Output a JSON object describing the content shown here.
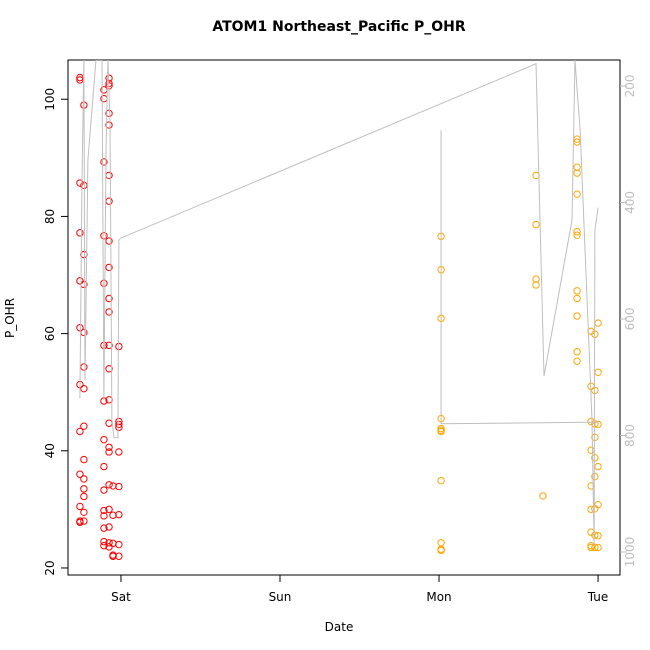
{
  "chart_data": {
    "type": "scatter",
    "title": "ATOM1 Northeast_Pacific P_OHR",
    "x_label": "Date",
    "y_label": "P_OHR",
    "xlim": [
      -0.333,
      3.138
    ],
    "xticks": [
      {
        "value": 0,
        "label": "Sat"
      },
      {
        "value": 1,
        "label": "Sun"
      },
      {
        "value": 2,
        "label": "Mon"
      },
      {
        "value": 3,
        "label": "Tue"
      }
    ],
    "ylim": [
      18.8,
      106.7
    ],
    "yticks": [
      20,
      40,
      60,
      80,
      100
    ],
    "y2lim": [
      1039.5,
      155.4
    ],
    "y2ticks": [
      200,
      400,
      600,
      800,
      1000
    ],
    "series": [
      {
        "color": "#ff0000",
        "x": [
          -0.258,
          -0.258,
          -0.258,
          -0.258,
          -0.258,
          -0.258,
          -0.258,
          -0.258,
          -0.258,
          -0.258,
          -0.258,
          -0.258,
          -0.233,
          -0.233,
          -0.233,
          -0.233,
          -0.233,
          -0.233,
          -0.233,
          -0.233,
          -0.233,
          -0.233,
          -0.233,
          -0.233,
          -0.233,
          -0.233,
          -0.107,
          -0.107,
          -0.107,
          -0.107,
          -0.107,
          -0.107,
          -0.107,
          -0.107,
          -0.107,
          -0.107,
          -0.107,
          -0.107,
          -0.107,
          -0.107,
          -0.107,
          -0.075,
          -0.075,
          -0.075,
          -0.075,
          -0.075,
          -0.075,
          -0.075,
          -0.075,
          -0.075,
          -0.075,
          -0.075,
          -0.075,
          -0.075,
          -0.075,
          -0.075,
          -0.075,
          -0.075,
          -0.075,
          -0.075,
          -0.075,
          -0.075,
          -0.075,
          -0.05,
          -0.05,
          -0.05,
          -0.05,
          -0.05,
          -0.013,
          -0.013,
          -0.013,
          -0.013,
          -0.013,
          -0.013,
          -0.013,
          -0.013,
          -0.013
        ],
        "values": [
          103.7,
          103.3,
          85.7,
          77.2,
          69,
          61,
          51.3,
          43.3,
          36,
          30.5,
          28,
          27.8,
          99,
          85.3,
          73.5,
          68.4,
          60.2,
          54.3,
          50.6,
          44.2,
          38.5,
          35.2,
          33.5,
          32.2,
          29.5,
          28,
          101.6,
          100.1,
          89.3,
          76.7,
          68.6,
          58,
          48.5,
          41.9,
          37.3,
          33.3,
          29.8,
          28.9,
          26.8,
          24.5,
          23.8,
          103.6,
          102.7,
          102.3,
          97.6,
          95.6,
          87,
          82.6,
          75.8,
          71.3,
          66,
          63.7,
          58,
          54,
          48.7,
          44.7,
          40.6,
          39.8,
          34.2,
          30,
          27,
          24.3,
          23.6,
          34,
          29,
          24.2,
          22.2,
          22,
          57.8,
          45,
          44.5,
          44,
          39.8,
          33.9,
          29.1,
          24,
          22
        ]
      },
      {
        "color": "#ffa500",
        "x": [
          2.013,
          2.013,
          2.013,
          2.013,
          2.013,
          2.013,
          2.013,
          2.013,
          2.013,
          2.013,
          2.013,
          2.61,
          2.61,
          2.61,
          2.61,
          2.654,
          2.868,
          2.868,
          2.868,
          2.868,
          2.868,
          2.868,
          2.868,
          2.868,
          2.868,
          2.868,
          2.868,
          2.868,
          2.956,
          2.956,
          2.956,
          2.956,
          2.956,
          2.956,
          2.956,
          2.956,
          2.956,
          2.98,
          2.98,
          2.98,
          2.98,
          2.98,
          2.98,
          2.98,
          2.98,
          2.98,
          3.0,
          3.0,
          3.0,
          3.0,
          3.0,
          3.0,
          3.0
        ],
        "values": [
          76.6,
          70.9,
          62.6,
          45.5,
          43.8,
          43.5,
          43.3,
          34.9,
          24.3,
          23.2,
          23,
          87,
          78.6,
          69.3,
          68.3,
          32.3,
          93.2,
          92.7,
          88.4,
          87.4,
          83.8,
          77.4,
          76.8,
          67.3,
          66,
          63,
          56.9,
          55.3,
          60.4,
          51,
          45,
          40.1,
          34,
          30,
          26.1,
          23.8,
          23.5,
          59.9,
          50.3,
          44.6,
          42.3,
          38.8,
          35.6,
          30.1,
          25.6,
          23.5,
          61.8,
          53.4,
          44.5,
          37.3,
          30.8,
          25.5,
          23.5
        ]
      },
      {
        "color": "#bebebe",
        "axis": "y2",
        "x": [
          -0.258,
          -0.245,
          -0.233,
          -0.226,
          -0.208,
          -0.157,
          -0.119,
          -0.107,
          -0.094,
          -0.082,
          -0.069,
          -0.057,
          -0.044,
          -0.031,
          -0.019,
          -0.013,
          0,
          2.61,
          2.66,
          2.836,
          2.855,
          2.868,
          2.887,
          2.962,
          2.975,
          2.98,
          3.0,
          null,
          2.013,
          2.013,
          3.0
        ],
        "values": [
          736,
          361,
          155,
          705,
          327,
          155,
          155,
          739,
          310,
          155,
          258,
          773,
          804,
          804,
          804,
          464,
          461,
          162,
          698,
          430,
          155,
          207,
          275,
          773,
          988,
          447,
          409,
          null,
          276,
          780,
          777
        ]
      }
    ]
  }
}
